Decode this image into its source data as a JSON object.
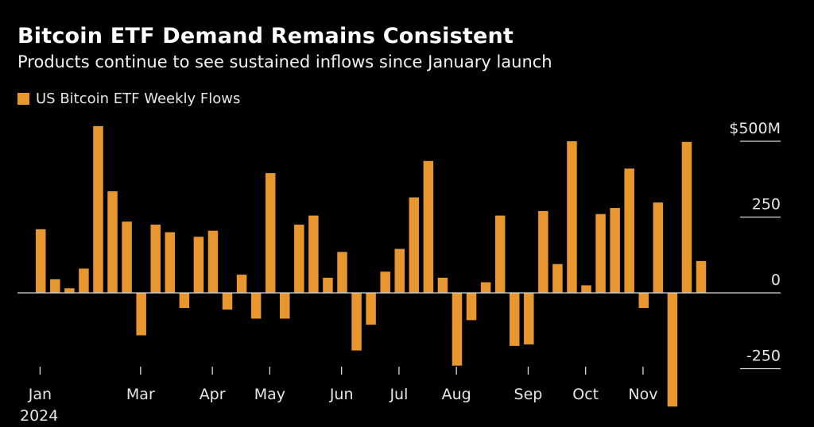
{
  "colors": {
    "bar": "#e8962e",
    "axis": "#d9d9d9",
    "background": "#000000",
    "text": "#e6e6e6"
  },
  "chart_data": {
    "type": "bar",
    "title": "Bitcoin ETF Demand Remains Consistent",
    "subtitle": "Products continue to see sustained inflows since January launch",
    "legend": [
      "US Bitcoin ETF Weekly Flows"
    ],
    "legend_position": "top-left",
    "unit": "USD millions",
    "ylim": [
      -250,
      500
    ],
    "y_ticks": [
      500,
      250,
      0,
      -250
    ],
    "y_tick_labels": [
      "$500M",
      "250",
      "0",
      "-250"
    ],
    "x_ticks": [
      {
        "label": "Jan",
        "index": 0.3
      },
      {
        "label": "Mar",
        "index": 7.3
      },
      {
        "label": "Apr",
        "index": 12.3
      },
      {
        "label": "May",
        "index": 16.3
      },
      {
        "label": "Jun",
        "index": 21.3
      },
      {
        "label": "Jul",
        "index": 25.3
      },
      {
        "label": "Aug",
        "index": 29.3
      },
      {
        "label": "Sep",
        "index": 34.3
      },
      {
        "label": "Oct",
        "index": 38.3
      },
      {
        "label": "Nov",
        "index": 42.3
      }
    ],
    "year_label": "2024",
    "values": [
      210,
      45,
      15,
      80,
      550,
      335,
      235,
      -140,
      225,
      200,
      -50,
      185,
      205,
      -55,
      60,
      -85,
      395,
      -85,
      225,
      255,
      50,
      135,
      -190,
      -105,
      70,
      145,
      315,
      435,
      50,
      -240,
      -90,
      35,
      255,
      -175,
      -170,
      270,
      95,
      500,
      25,
      260,
      280,
      410,
      -50,
      298,
      -375,
      498,
      105
    ]
  }
}
